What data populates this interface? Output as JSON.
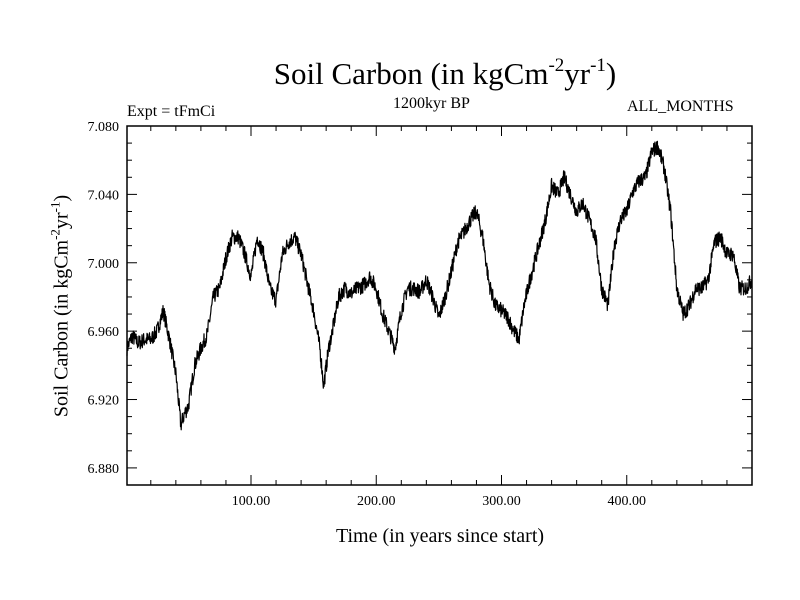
{
  "chart_data": {
    "type": "line",
    "title": {
      "prefix": "Soil Carbon (in kgCm",
      "sup1": "-2",
      "mid": "yr",
      "sup2": "-1",
      "suffix": ")"
    },
    "subtitle": "1200kyr BP",
    "experiment": "Expt = tFmCi",
    "months": "ALL_MONTHS",
    "xlabel": "Time (in years since start)",
    "ylabel": {
      "prefix": "Soil Carbon (in kgCm",
      "sup1": "-2",
      "mid": "yr",
      "sup2": "-1",
      "suffix": ")"
    },
    "xlim": [
      1,
      500
    ],
    "ylim": [
      6.87,
      7.08
    ],
    "xticks": [
      {
        "value": 100,
        "label": "100.00"
      },
      {
        "value": 200,
        "label": "200.00"
      },
      {
        "value": 300,
        "label": "300.00"
      },
      {
        "value": 400,
        "label": "400.00"
      }
    ],
    "yticks": [
      {
        "value": 6.88,
        "label": "6.880"
      },
      {
        "value": 6.92,
        "label": "6.920"
      },
      {
        "value": 6.96,
        "label": "6.960"
      },
      {
        "value": 7.0,
        "label": "7.000"
      },
      {
        "value": 7.04,
        "label": "7.040"
      },
      {
        "value": 7.08,
        "label": "7.080"
      }
    ],
    "series": [
      {
        "name": "Soil Carbon",
        "color": "#000000",
        "noise": 0.0045,
        "x": [
          1,
          5,
          10,
          15,
          20,
          25,
          30,
          35,
          40,
          44,
          47,
          50,
          55,
          60,
          65,
          70,
          75,
          80,
          85,
          90,
          95,
          100,
          105,
          110,
          115,
          120,
          125,
          130,
          135,
          140,
          145,
          150,
          155,
          158,
          162,
          165,
          170,
          175,
          180,
          185,
          190,
          195,
          200,
          205,
          210,
          215,
          220,
          225,
          230,
          235,
          240,
          245,
          250,
          255,
          260,
          265,
          270,
          275,
          280,
          285,
          290,
          295,
          300,
          305,
          310,
          314,
          318,
          322,
          328,
          335,
          340,
          345,
          350,
          355,
          360,
          365,
          370,
          375,
          380,
          385,
          390,
          395,
          400,
          405,
          410,
          415,
          420,
          425,
          430,
          435,
          440,
          445,
          450,
          455,
          460,
          465,
          470,
          475,
          480,
          485,
          490,
          495,
          500
        ],
        "y": [
          6.95,
          6.957,
          6.953,
          6.955,
          6.955,
          6.96,
          6.972,
          6.955,
          6.935,
          6.905,
          6.912,
          6.916,
          6.94,
          6.95,
          6.958,
          6.98,
          6.985,
          7.003,
          7.015,
          7.015,
          7.005,
          6.992,
          7.015,
          7.005,
          6.985,
          6.978,
          7.005,
          7.012,
          7.015,
          7.005,
          6.988,
          6.972,
          6.95,
          6.928,
          6.95,
          6.96,
          6.98,
          6.985,
          6.982,
          6.985,
          6.987,
          6.992,
          6.985,
          6.97,
          6.96,
          6.95,
          6.972,
          6.985,
          6.985,
          6.983,
          6.99,
          6.98,
          6.968,
          6.98,
          6.995,
          7.012,
          7.018,
          7.025,
          7.03,
          7.015,
          6.988,
          6.975,
          6.972,
          6.968,
          6.96,
          6.955,
          6.975,
          6.988,
          7.005,
          7.025,
          7.045,
          7.04,
          7.05,
          7.04,
          7.03,
          7.035,
          7.025,
          7.015,
          6.985,
          6.975,
          7.01,
          7.025,
          7.03,
          7.042,
          7.048,
          7.05,
          7.065,
          7.068,
          7.055,
          7.03,
          6.985,
          6.97,
          6.975,
          6.985,
          6.985,
          6.99,
          7.012,
          7.015,
          7.005,
          7.005,
          6.985,
          6.985,
          6.99
        ]
      }
    ]
  }
}
